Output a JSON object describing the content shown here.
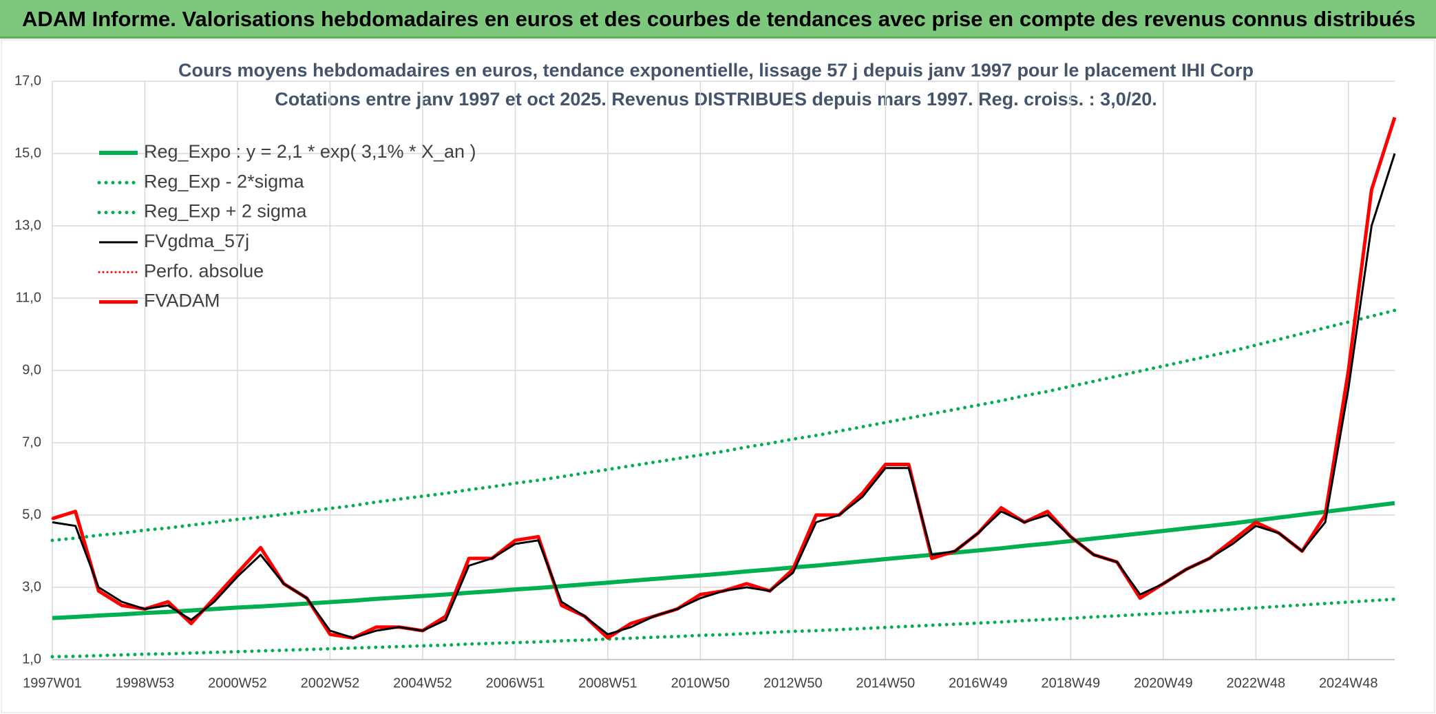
{
  "header": {
    "title": "ADAM Informe. Valorisations hebdomadaires en euros et des courbes de tendances avec prise en compte des revenus connus distribués"
  },
  "chart_data": {
    "type": "line",
    "title": "Cours moyens hebdomadaires en euros, tendance exponentielle, lissage 57 j depuis janv 1997 pour le placement IHI Corp",
    "subtitle": "Cotations entre janv 1997 et oct 2025. Revenus DISTRIBUES depuis mars 1997. Reg. croiss. : 3,0/20.",
    "categories": [
      "1997W01",
      null,
      null,
      null,
      "1998W53",
      null,
      null,
      null,
      "2000W52",
      null,
      null,
      null,
      "2002W52",
      null,
      null,
      null,
      "2004W52",
      null,
      null,
      null,
      "2006W51",
      null,
      null,
      null,
      "2008W51",
      null,
      null,
      null,
      "2010W50",
      null,
      null,
      null,
      "2012W50",
      null,
      null,
      null,
      "2014W50",
      null,
      null,
      null,
      "2016W49",
      null,
      null,
      null,
      "2018W49",
      null,
      null,
      null,
      "2020W49",
      null,
      null,
      null,
      "2022W48",
      null,
      null,
      null,
      "2024W48",
      null,
      null
    ],
    "ylim": [
      1,
      17
    ],
    "yticks": [
      {
        "value": 1,
        "label": "1,0"
      },
      {
        "value": 3,
        "label": "3,0"
      },
      {
        "value": 5,
        "label": "5,0"
      },
      {
        "value": 7,
        "label": "7,0"
      },
      {
        "value": 9,
        "label": "9,0"
      },
      {
        "value": 11,
        "label": "11,0"
      },
      {
        "value": 13,
        "label": "13,0"
      },
      {
        "value": 15,
        "label": "15,0"
      },
      {
        "value": 17,
        "label": "17,0"
      }
    ],
    "grid": true,
    "legend": "top-left",
    "series": [
      {
        "name": "Reg_Expo : y = 2,1 * exp( 3,1% *  X_an )",
        "color": "#00b050",
        "style": "solid",
        "width": 6,
        "values": [
          2.15,
          2.18,
          2.22,
          2.25,
          2.29,
          2.32,
          2.36,
          2.4,
          2.44,
          2.47,
          2.51,
          2.55,
          2.59,
          2.63,
          2.68,
          2.72,
          2.76,
          2.8,
          2.85,
          2.89,
          2.94,
          2.98,
          3.03,
          3.08,
          3.13,
          3.18,
          3.23,
          3.28,
          3.33,
          3.38,
          3.44,
          3.49,
          3.55,
          3.6,
          3.66,
          3.72,
          3.78,
          3.84,
          3.9,
          3.96,
          4.02,
          4.08,
          4.15,
          4.21,
          4.28,
          4.35,
          4.42,
          4.49,
          4.56,
          4.63,
          4.7,
          4.77,
          4.85,
          4.93,
          5.01,
          5.09,
          5.17,
          5.25,
          5.33
        ]
      },
      {
        "name": "Reg_Exp - 2*sigma",
        "color": "#00b050",
        "style": "dotted",
        "width": 5,
        "values": [
          1.08,
          1.09,
          1.11,
          1.13,
          1.15,
          1.16,
          1.18,
          1.2,
          1.22,
          1.24,
          1.26,
          1.28,
          1.3,
          1.32,
          1.34,
          1.36,
          1.38,
          1.4,
          1.43,
          1.45,
          1.47,
          1.49,
          1.52,
          1.54,
          1.57,
          1.59,
          1.62,
          1.64,
          1.67,
          1.69,
          1.72,
          1.75,
          1.78,
          1.8,
          1.83,
          1.86,
          1.89,
          1.92,
          1.95,
          1.98,
          2.01,
          2.04,
          2.08,
          2.11,
          2.14,
          2.18,
          2.21,
          2.25,
          2.28,
          2.32,
          2.35,
          2.39,
          2.43,
          2.47,
          2.51,
          2.55,
          2.59,
          2.63,
          2.67
        ]
      },
      {
        "name": "Reg_Exp + 2 sigma",
        "color": "#00b050",
        "style": "dotted",
        "width": 5,
        "values": [
          4.3,
          4.36,
          4.44,
          4.5,
          4.58,
          4.64,
          4.72,
          4.8,
          4.88,
          4.94,
          5.02,
          5.1,
          5.18,
          5.26,
          5.36,
          5.44,
          5.52,
          5.6,
          5.7,
          5.78,
          5.88,
          5.96,
          6.06,
          6.16,
          6.26,
          6.36,
          6.46,
          6.56,
          6.66,
          6.76,
          6.88,
          6.98,
          7.1,
          7.2,
          7.32,
          7.44,
          7.56,
          7.68,
          7.8,
          7.92,
          8.04,
          8.16,
          8.3,
          8.42,
          8.56,
          8.7,
          8.84,
          8.98,
          9.12,
          9.26,
          9.4,
          9.54,
          9.7,
          9.86,
          10.02,
          10.18,
          10.34,
          10.5,
          10.66
        ]
      },
      {
        "name": "FVgdma_57j",
        "color": "#000000",
        "style": "solid",
        "width": 3,
        "values": [
          4.8,
          4.7,
          3.0,
          2.6,
          2.4,
          2.5,
          2.1,
          2.6,
          3.3,
          3.9,
          3.1,
          2.7,
          1.8,
          1.6,
          1.8,
          1.9,
          1.8,
          2.1,
          3.6,
          3.8,
          4.2,
          4.3,
          2.6,
          2.2,
          1.7,
          1.9,
          2.2,
          2.4,
          2.7,
          2.9,
          3.0,
          2.9,
          3.4,
          4.8,
          5.0,
          5.5,
          6.3,
          6.3,
          3.9,
          4.0,
          4.5,
          5.1,
          4.8,
          5.0,
          4.4,
          3.9,
          3.7,
          2.8,
          3.1,
          3.5,
          3.8,
          4.2,
          4.7,
          4.5,
          4.0,
          4.8,
          8.5,
          13.0,
          15.0
        ]
      },
      {
        "name": "Perfo. absolue",
        "color": "#ff0000",
        "style": "dotted",
        "width": 3,
        "values": [
          4.9,
          5.1,
          2.9,
          2.5,
          2.4,
          2.6,
          2.0,
          2.7,
          3.4,
          4.1,
          3.1,
          2.7,
          1.7,
          1.6,
          1.9,
          1.9,
          1.8,
          2.2,
          3.8,
          3.8,
          4.3,
          4.4,
          2.5,
          2.2,
          1.6,
          2.0,
          2.2,
          2.4,
          2.8,
          2.9,
          3.1,
          2.9,
          3.5,
          5.0,
          5.0,
          5.6,
          6.4,
          6.4,
          3.8,
          4.0,
          4.5,
          5.2,
          4.8,
          5.1,
          4.4,
          3.9,
          3.7,
          2.7,
          3.1,
          3.5,
          3.8,
          4.3,
          4.8,
          4.5,
          4.0,
          5.0,
          9.0,
          14.0,
          16.0
        ]
      },
      {
        "name": "FVADAM",
        "color": "#ff0000",
        "style": "solid",
        "width": 5,
        "values": [
          4.9,
          5.1,
          2.9,
          2.5,
          2.4,
          2.6,
          2.0,
          2.7,
          3.4,
          4.1,
          3.1,
          2.7,
          1.7,
          1.6,
          1.9,
          1.9,
          1.8,
          2.2,
          3.8,
          3.8,
          4.3,
          4.4,
          2.5,
          2.2,
          1.6,
          2.0,
          2.2,
          2.4,
          2.8,
          2.9,
          3.1,
          2.9,
          3.5,
          5.0,
          5.0,
          5.6,
          6.4,
          6.4,
          3.8,
          4.0,
          4.5,
          5.2,
          4.8,
          5.1,
          4.4,
          3.9,
          3.7,
          2.7,
          3.1,
          3.5,
          3.8,
          4.3,
          4.8,
          4.5,
          4.0,
          5.0,
          9.0,
          14.0,
          16.0
        ]
      }
    ]
  }
}
